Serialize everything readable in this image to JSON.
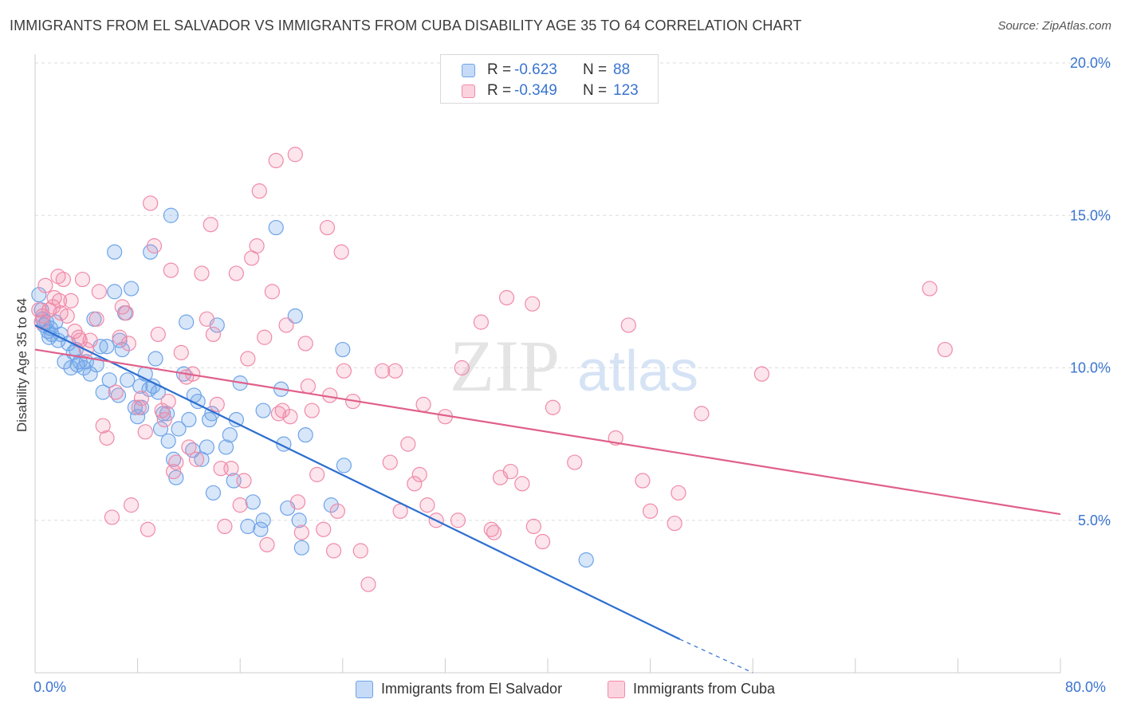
{
  "header": {
    "title": "IMMIGRANTS FROM EL SALVADOR VS IMMIGRANTS FROM CUBA DISABILITY AGE 35 TO 64 CORRELATION CHART",
    "source": "Source: ZipAtlas.com"
  },
  "watermark": {
    "zip": "ZIP",
    "atlas": "atlas"
  },
  "legend": {
    "rows": [
      {
        "r_label": "R =",
        "r_value": "-0.623",
        "n_label": "N =",
        "n_value": "88",
        "color": "#6fa4e8"
      },
      {
        "r_label": "R =",
        "r_value": "-0.349",
        "n_label": "N =",
        "n_value": "123",
        "color": "#f08aa8"
      }
    ]
  },
  "bottom_legend": {
    "items": [
      {
        "label": "Immigrants from El Salvador",
        "color": "#6fa4e8"
      },
      {
        "label": "Immigrants from Cuba",
        "color": "#f08aa8"
      }
    ]
  },
  "chart_data": {
    "type": "scatter",
    "title": "IMMIGRANTS FROM EL SALVADOR VS IMMIGRANTS FROM CUBA DISABILITY AGE 35 TO 64 CORRELATION CHART",
    "xlabel": "",
    "ylabel": "Disability Age 35 to 64",
    "xlim": [
      0,
      80
    ],
    "ylim": [
      0,
      20
    ],
    "x_tick_labels": [
      "0.0%",
      "80.0%"
    ],
    "y_ticks": [
      5,
      10,
      15,
      20
    ],
    "y_tick_labels": [
      "5.0%",
      "10.0%",
      "15.0%",
      "20.0%"
    ],
    "grid": "horizontal dashed",
    "legend_position": "top-center",
    "series": [
      {
        "name": "Immigrants from El Salvador",
        "color": "#6fa4e8",
        "line_color": "#2d6fd0",
        "trend": {
          "x": [
            0,
            50.3
          ],
          "y": [
            11.4,
            1.1
          ],
          "dashed_extension": {
            "x": [
              50.3,
              56.0
            ],
            "y": [
              1.1,
              0.0
            ]
          }
        },
        "points": [
          [
            0.3,
            12.4
          ],
          [
            0.5,
            11.9
          ],
          [
            0.6,
            11.6
          ],
          [
            0.7,
            11.4
          ],
          [
            0.9,
            11.5
          ],
          [
            1.0,
            11.2
          ],
          [
            1.1,
            11.0
          ],
          [
            1.3,
            11.1
          ],
          [
            1.6,
            11.5
          ],
          [
            1.8,
            10.9
          ],
          [
            2.0,
            11.1
          ],
          [
            2.3,
            10.2
          ],
          [
            2.6,
            10.8
          ],
          [
            2.8,
            10.0
          ],
          [
            3.0,
            10.5
          ],
          [
            3.2,
            10.6
          ],
          [
            3.5,
            10.2
          ],
          [
            3.8,
            10.0
          ],
          [
            4.0,
            10.2
          ],
          [
            4.3,
            9.8
          ],
          [
            4.6,
            11.6
          ],
          [
            4.8,
            10.1
          ],
          [
            5.1,
            10.7
          ],
          [
            5.3,
            9.2
          ],
          [
            5.6,
            10.7
          ],
          [
            5.8,
            9.6
          ],
          [
            6.2,
            12.5
          ],
          [
            6.2,
            13.8
          ],
          [
            6.5,
            9.1
          ],
          [
            6.6,
            10.9
          ],
          [
            6.8,
            10.6
          ],
          [
            7.0,
            11.8
          ],
          [
            7.2,
            9.6
          ],
          [
            7.5,
            12.6
          ],
          [
            7.8,
            8.7
          ],
          [
            8.0,
            8.4
          ],
          [
            8.2,
            9.4
          ],
          [
            8.3,
            8.7
          ],
          [
            8.6,
            9.8
          ],
          [
            8.9,
            9.3
          ],
          [
            9.0,
            13.8
          ],
          [
            9.2,
            9.4
          ],
          [
            9.4,
            10.3
          ],
          [
            9.6,
            9.2
          ],
          [
            9.8,
            8.0
          ],
          [
            10.0,
            8.5
          ],
          [
            10.3,
            8.5
          ],
          [
            10.4,
            7.6
          ],
          [
            10.6,
            15.0
          ],
          [
            10.8,
            7.0
          ],
          [
            11.0,
            6.4
          ],
          [
            11.2,
            8.0
          ],
          [
            11.6,
            9.8
          ],
          [
            11.8,
            11.5
          ],
          [
            12.0,
            8.3
          ],
          [
            12.3,
            7.3
          ],
          [
            12.4,
            9.1
          ],
          [
            12.7,
            8.9
          ],
          [
            13.0,
            7.0
          ],
          [
            13.4,
            7.4
          ],
          [
            13.6,
            8.3
          ],
          [
            13.8,
            8.5
          ],
          [
            13.9,
            5.9
          ],
          [
            14.2,
            11.4
          ],
          [
            14.9,
            7.4
          ],
          [
            15.2,
            7.8
          ],
          [
            15.5,
            6.3
          ],
          [
            15.7,
            8.3
          ],
          [
            16.0,
            9.5
          ],
          [
            16.6,
            4.8
          ],
          [
            17.0,
            5.6
          ],
          [
            17.6,
            4.7
          ],
          [
            17.8,
            5.0
          ],
          [
            17.8,
            8.6
          ],
          [
            18.8,
            14.6
          ],
          [
            19.2,
            9.3
          ],
          [
            19.4,
            7.5
          ],
          [
            19.7,
            5.4
          ],
          [
            20.3,
            11.7
          ],
          [
            20.6,
            5.0
          ],
          [
            20.8,
            4.1
          ],
          [
            21.1,
            7.8
          ],
          [
            23.1,
            5.5
          ],
          [
            24.0,
            10.6
          ],
          [
            24.1,
            6.8
          ],
          [
            43.0,
            3.7
          ],
          [
            1.2,
            11.3
          ],
          [
            3.3,
            10.1
          ]
        ]
      },
      {
        "name": "Immigrants from Cuba",
        "color": "#f08aa8",
        "line_color": "#e0608a",
        "trend": {
          "x": [
            0,
            80
          ],
          "y": [
            10.6,
            5.2
          ]
        },
        "points": [
          [
            0.3,
            11.9
          ],
          [
            0.5,
            11.5
          ],
          [
            0.6,
            11.7
          ],
          [
            0.8,
            12.7
          ],
          [
            1.1,
            11.9
          ],
          [
            1.4,
            12.0
          ],
          [
            1.5,
            12.3
          ],
          [
            1.8,
            13.0
          ],
          [
            1.9,
            12.2
          ],
          [
            2.0,
            11.8
          ],
          [
            2.2,
            12.9
          ],
          [
            2.5,
            11.7
          ],
          [
            2.8,
            12.2
          ],
          [
            3.1,
            11.2
          ],
          [
            3.4,
            11.0
          ],
          [
            3.5,
            10.9
          ],
          [
            3.7,
            12.9
          ],
          [
            4.0,
            10.6
          ],
          [
            4.3,
            10.9
          ],
          [
            4.8,
            11.6
          ],
          [
            5.0,
            12.5
          ],
          [
            5.3,
            8.1
          ],
          [
            5.6,
            7.7
          ],
          [
            6.0,
            5.1
          ],
          [
            6.3,
            9.2
          ],
          [
            6.6,
            11.0
          ],
          [
            6.8,
            12.0
          ],
          [
            7.1,
            11.8
          ],
          [
            7.3,
            10.8
          ],
          [
            7.5,
            5.5
          ],
          [
            8.1,
            8.7
          ],
          [
            8.3,
            9.0
          ],
          [
            8.6,
            7.9
          ],
          [
            8.8,
            4.7
          ],
          [
            9.0,
            15.4
          ],
          [
            9.3,
            14.0
          ],
          [
            9.6,
            11.1
          ],
          [
            9.9,
            8.6
          ],
          [
            10.1,
            8.3
          ],
          [
            10.4,
            8.9
          ],
          [
            10.6,
            13.2
          ],
          [
            10.8,
            6.6
          ],
          [
            11.0,
            6.9
          ],
          [
            11.4,
            10.5
          ],
          [
            11.8,
            9.7
          ],
          [
            12.0,
            7.4
          ],
          [
            12.3,
            9.8
          ],
          [
            12.6,
            7.0
          ],
          [
            13.0,
            13.1
          ],
          [
            13.4,
            11.6
          ],
          [
            13.7,
            14.7
          ],
          [
            13.9,
            11.1
          ],
          [
            14.2,
            8.8
          ],
          [
            14.5,
            6.7
          ],
          [
            14.8,
            4.8
          ],
          [
            15.3,
            6.7
          ],
          [
            15.7,
            13.1
          ],
          [
            16.0,
            5.5
          ],
          [
            16.3,
            6.3
          ],
          [
            16.6,
            10.3
          ],
          [
            16.9,
            13.6
          ],
          [
            17.3,
            14.0
          ],
          [
            17.5,
            15.8
          ],
          [
            17.9,
            11.0
          ],
          [
            18.1,
            4.2
          ],
          [
            18.5,
            12.5
          ],
          [
            18.8,
            16.8
          ],
          [
            19.0,
            8.5
          ],
          [
            19.3,
            8.6
          ],
          [
            19.6,
            11.4
          ],
          [
            19.9,
            8.4
          ],
          [
            20.3,
            17.0
          ],
          [
            20.5,
            5.6
          ],
          [
            20.8,
            4.6
          ],
          [
            21.1,
            10.8
          ],
          [
            21.3,
            9.4
          ],
          [
            21.6,
            8.6
          ],
          [
            22.0,
            6.5
          ],
          [
            22.5,
            4.7
          ],
          [
            22.8,
            14.6
          ],
          [
            23.0,
            9.1
          ],
          [
            23.3,
            4.0
          ],
          [
            23.6,
            5.3
          ],
          [
            23.9,
            13.8
          ],
          [
            24.1,
            9.9
          ],
          [
            24.8,
            8.9
          ],
          [
            25.4,
            4.0
          ],
          [
            26.0,
            2.9
          ],
          [
            27.1,
            9.9
          ],
          [
            27.7,
            6.9
          ],
          [
            28.1,
            9.9
          ],
          [
            28.5,
            5.3
          ],
          [
            29.1,
            7.5
          ],
          [
            29.6,
            6.2
          ],
          [
            30.0,
            6.5
          ],
          [
            30.3,
            8.8
          ],
          [
            30.6,
            5.5
          ],
          [
            31.3,
            5.0
          ],
          [
            32.0,
            8.4
          ],
          [
            33.0,
            5.0
          ],
          [
            33.3,
            10.0
          ],
          [
            34.8,
            11.5
          ],
          [
            35.6,
            4.7
          ],
          [
            35.8,
            4.6
          ],
          [
            36.3,
            6.4
          ],
          [
            36.8,
            12.3
          ],
          [
            37.1,
            6.6
          ],
          [
            38.0,
            6.2
          ],
          [
            38.8,
            12.1
          ],
          [
            38.9,
            4.8
          ],
          [
            39.6,
            4.3
          ],
          [
            40.4,
            8.7
          ],
          [
            42.1,
            6.9
          ],
          [
            45.3,
            7.7
          ],
          [
            46.3,
            11.4
          ],
          [
            47.4,
            6.3
          ],
          [
            48.0,
            5.3
          ],
          [
            49.9,
            4.9
          ],
          [
            50.2,
            5.9
          ],
          [
            52.0,
            8.5
          ],
          [
            56.7,
            9.8
          ],
          [
            69.8,
            12.6
          ],
          [
            71.0,
            10.6
          ]
        ]
      }
    ]
  }
}
